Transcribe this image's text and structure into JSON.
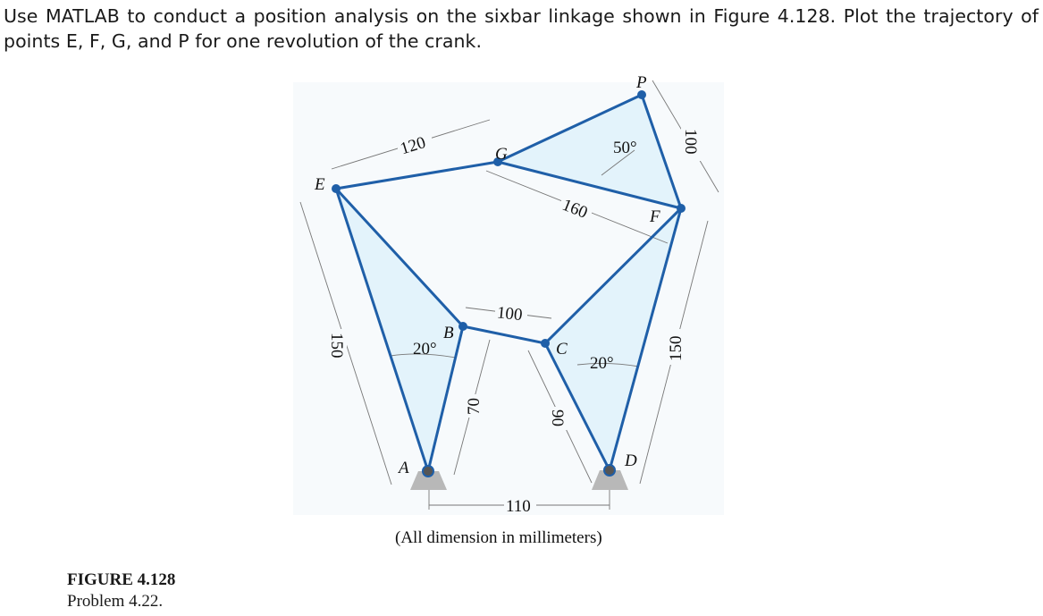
{
  "problem_text": "Use MATLAB to conduct a position analysis on the sixbar linkage shown in Figure 4.128. Plot the trajectory of points E, F, G, and P for one revolution of the crank.",
  "figure": {
    "caption_title": "FIGURE 4.128",
    "caption_sub": "Problem 4.22.",
    "note": "(All dimension in millimeters)",
    "points": {
      "A": "A",
      "B": "B",
      "C": "C",
      "D": "D",
      "E": "E",
      "F": "F",
      "G": "G",
      "P": "P"
    },
    "dimensions": {
      "eg": "120",
      "gf": "160",
      "pf": "100",
      "bc": "100",
      "ab": "70",
      "cd": "90",
      "ad": "110",
      "ae": "150",
      "df": "150",
      "angle_a": "20°",
      "angle_d": "20°",
      "angle_p": "50°"
    },
    "colors": {
      "link": "#1f5fa8",
      "fill": "#e3f3fb",
      "joint": "#1f5fa8",
      "ground": "#b8b8b8",
      "panel": "#f6f9fb"
    }
  }
}
